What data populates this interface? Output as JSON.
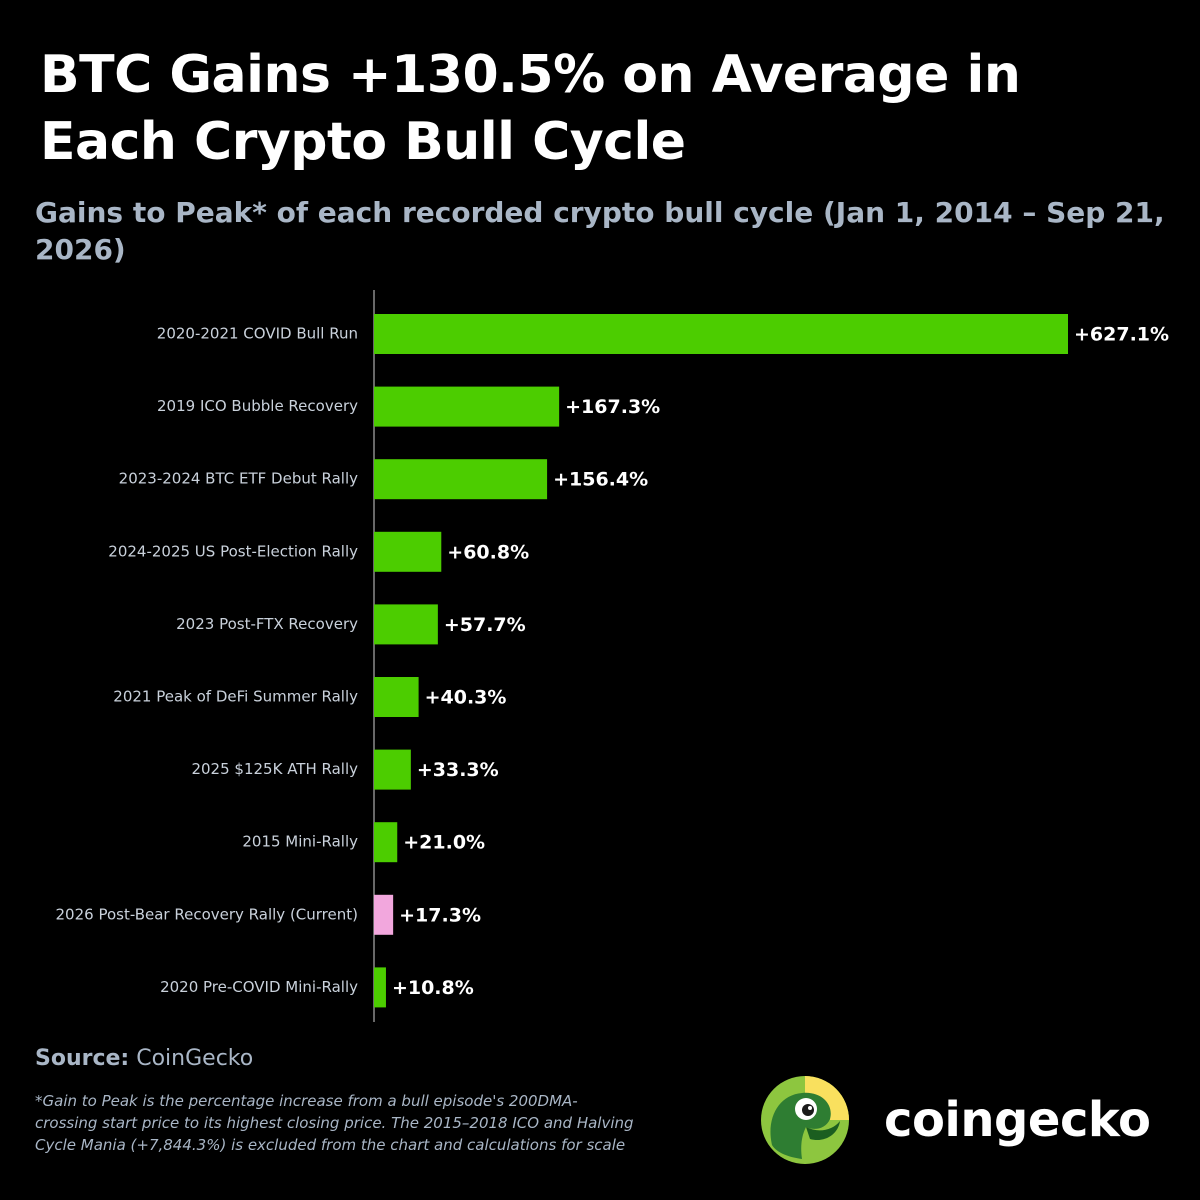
{
  "title": "BTC Gains +130.5% on Average in Each Crypto Bull Cycle",
  "subtitle": "Gains to Peak* of each recorded crypto bull cycle (Jan 1, 2014 – Sep 21, 2026)",
  "colors": {
    "background": "#000000",
    "bar": "#4ccd00",
    "bar_current": "#f2a7dd",
    "axis": "#8a8a8a"
  },
  "chart_data": {
    "type": "bar",
    "orientation": "horizontal",
    "categories": [
      "2020-2021 COVID Bull Run",
      "2019 ICO Bubble Recovery",
      "2023-2024 BTC ETF Debut Rally",
      "2024-2025 US Post-Election Rally",
      "2023 Post-FTX Recovery",
      "2021 Peak of DeFi Summer Rally",
      "2025 $125K ATH Rally",
      "2015 Mini-Rally",
      "2026 Post-Bear Recovery Rally (Current)",
      "2020 Pre-COVID Mini-Rally"
    ],
    "values": [
      627.1,
      167.3,
      156.4,
      60.8,
      57.7,
      40.3,
      33.3,
      21.0,
      17.3,
      10.8
    ],
    "value_labels": [
      "+627.1%",
      "+167.3%",
      "+156.4%",
      "+60.8%",
      "+57.7%",
      "+40.3%",
      "+33.3%",
      "+21.0%",
      "+17.3%",
      "+10.8%"
    ],
    "highlight_index": 8,
    "xlim": [
      0,
      627.1
    ],
    "grid": false,
    "legend": "none"
  },
  "source": {
    "label": "Source:",
    "value": "CoinGecko"
  },
  "footnote": "*Gain to Peak is the percentage increase from a bull episode's 200DMA-crossing start price to its highest closing price. The 2015–2018 ICO and Halving Cycle Mania (+7,844.3%) is excluded from the chart and calculations for scale",
  "brand": {
    "logo_icon": "gecko-logo-icon",
    "name": "coingecko"
  }
}
